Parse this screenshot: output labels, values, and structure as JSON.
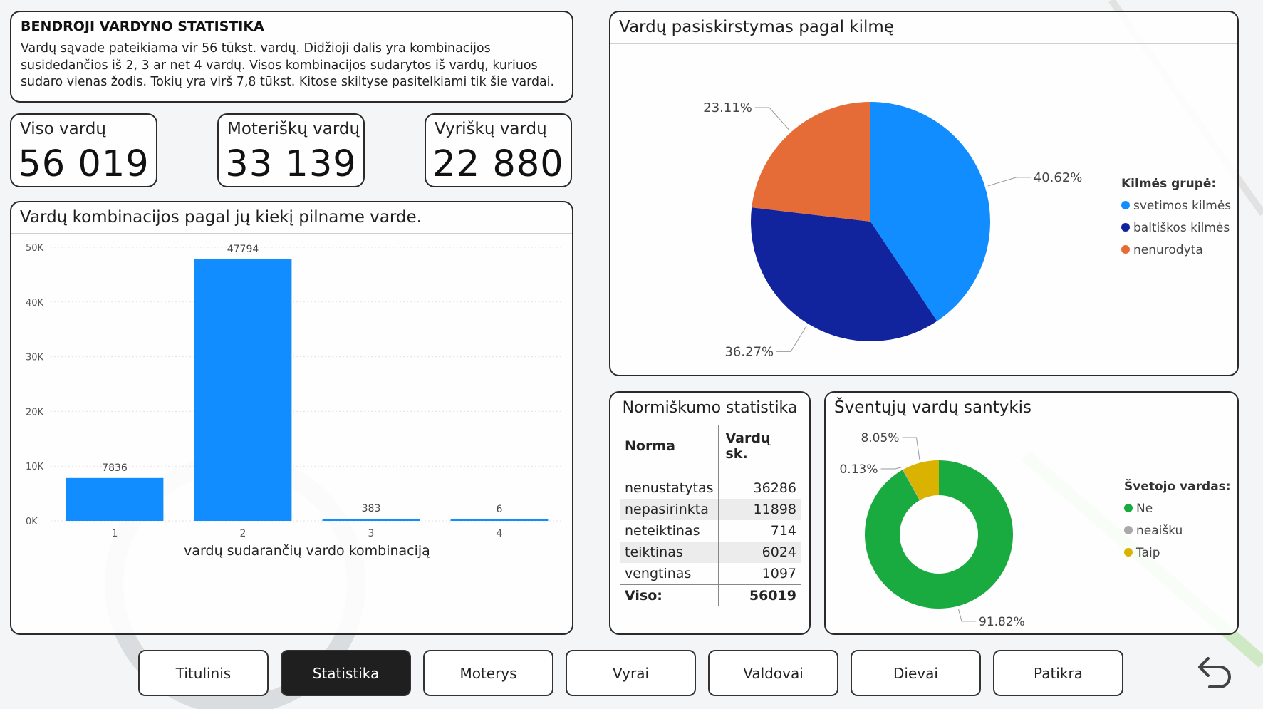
{
  "info": {
    "title": "BENDROJI VARDYNO STATISTIKA",
    "text": "Vardų sąvade pateikiama vir 56 tūkst. vardų. Didžioji dalis yra kombinacijos susidedančios iš 2, 3 ar net 4 vardų. Visos kombinacijos sudarytos iš vardų, kuriuos sudaro vienas žodis. Tokių yra virš 7,8 tūkst. Kitose skiltyse pasitelkiami tik šie vardai."
  },
  "kpis": [
    {
      "label": "Viso vardų",
      "value": "56 019"
    },
    {
      "label": "Moteriškų vardų",
      "value": "33 139"
    },
    {
      "label": "Vyriškų vardų",
      "value": "22 880"
    }
  ],
  "chart_data": [
    {
      "type": "bar",
      "title": "Vardų kombinacijos pagal jų kiekį pilname varde.",
      "xlabel": "vardų sudarančių vardo kombinaciją",
      "ylabel": "",
      "categories": [
        "1",
        "2",
        "3",
        "4"
      ],
      "values": [
        7836,
        47794,
        383,
        6
      ],
      "data_labels": [
        "7836",
        "47794",
        "383",
        "6"
      ],
      "yticks": [
        "0K",
        "10K",
        "20K",
        "30K",
        "40K",
        "50K"
      ],
      "ylim": [
        0,
        50000
      ],
      "grid": true,
      "color": "#118DFF"
    },
    {
      "type": "pie",
      "title": "Vardų pasiskirstymas pagal kilmę",
      "legend_title": "Kilmės grupė:",
      "legend_position": "right",
      "slices": [
        {
          "label": "svetimos kilmės",
          "value": 40.62,
          "display": "40.62%",
          "color": "#118DFF"
        },
        {
          "label": "baltiškos kilmės",
          "value": 36.27,
          "display": "36.27%",
          "color": "#12239E"
        },
        {
          "label": "nenurodyta",
          "value": 23.11,
          "display": "23.11%",
          "color": "#E66C37"
        }
      ]
    },
    {
      "type": "table",
      "title": "Normiškumo statistika",
      "columns": [
        "Norma",
        "Vardų sk."
      ],
      "rows": [
        [
          "nenustatytas",
          "36286"
        ],
        [
          "nepasirinkta",
          "11898"
        ],
        [
          "neteiktinas",
          "714"
        ],
        [
          "teiktinas",
          "6024"
        ],
        [
          "vengtinas",
          "1097"
        ]
      ],
      "total": [
        "Viso:",
        "56019"
      ]
    },
    {
      "type": "pie",
      "subtype": "donut",
      "title": "Šventųjų vardų santykis",
      "legend_title": "Švetojo vardas:",
      "legend_position": "right",
      "slices": [
        {
          "label": "Ne",
          "value": 91.82,
          "display": "91.82%",
          "color": "#1AAB40"
        },
        {
          "label": "neaišku",
          "value": 0.13,
          "display": "0.13%",
          "color": "#A9A9A9"
        },
        {
          "label": "Taip",
          "value": 8.05,
          "display": "8.05%",
          "color": "#D9B300"
        }
      ]
    }
  ],
  "nav": [
    "Titulinis",
    "Statistika",
    "Moterys",
    "Vyrai",
    "Valdovai",
    "Dievai",
    "Patikra"
  ],
  "nav_active": "Statistika"
}
